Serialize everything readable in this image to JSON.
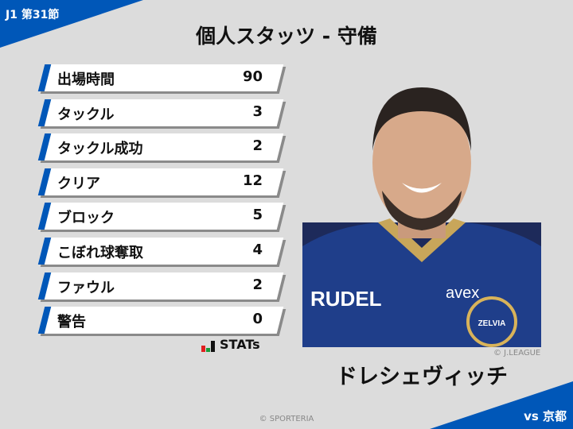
{
  "header": {
    "round": "J1 第31節",
    "title": "個人スタッツ - 守備",
    "opponent": "vs 京都"
  },
  "colors": {
    "accent": "#0057b8",
    "background": "#dcdcdc"
  },
  "stats": [
    {
      "label": "出場時間",
      "value": "90"
    },
    {
      "label": "タックル",
      "value": "3"
    },
    {
      "label": "タックル成功",
      "value": "2"
    },
    {
      "label": "クリア",
      "value": "12"
    },
    {
      "label": "ブロック",
      "value": "5"
    },
    {
      "label": "こぼれ球奪取",
      "value": "4"
    },
    {
      "label": "ファウル",
      "value": "2"
    },
    {
      "label": "警告",
      "value": "0"
    }
  ],
  "brand": {
    "stats_logo": "STATs"
  },
  "player": {
    "name": "ドレシェヴィッチ",
    "photo_credit": "© J.LEAGUE",
    "jersey_text": "RUDEL",
    "sponsor": "avex",
    "crest": "ZELVIA"
  },
  "footer": {
    "copyright": "© SPORTERIA"
  }
}
